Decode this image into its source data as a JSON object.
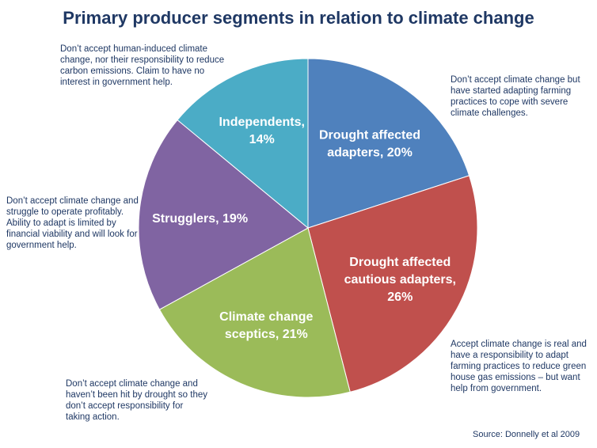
{
  "chart_data": {
    "type": "pie",
    "title": "Primary producer segments in relation to climate change",
    "slices": [
      {
        "label": "Drought affected\nadapters, 20%",
        "value": 20,
        "color": "#4f81bd",
        "description": "Don’t accept climate change but have started adapting farming practices to cope with severe climate challenges."
      },
      {
        "label": "Drought affected\ncautious adapters,\n26%",
        "value": 26,
        "color": "#c0504d",
        "description": "Accept climate change is real and have a responsibility to adapt farming practices to reduce green house gas emissions – but want help from government."
      },
      {
        "label": "Climate change\nsceptics, 21%",
        "value": 21,
        "color": "#9bbb59",
        "description": "Don’t accept climate change and haven’t been hit by drought  so they don’t accept responsibility for taking action."
      },
      {
        "label": "Strugglers, 19%",
        "value": 19,
        "color": "#8064a2",
        "description": "Don’t accept climate change and struggle  to operate profitably. Ability to adapt is limited by financial viability and will look for government  help."
      },
      {
        "label": "Independents,\n14%",
        "value": 14,
        "color": "#4bacc6",
        "description": "Don’t accept human-induced  climate change, nor their responsibility to reduce carbon emissions. Claim to have no interest in government  help."
      }
    ],
    "start_angle_deg": 0,
    "direction": "clockwise",
    "source": "Source: Donnelly et al 2009"
  }
}
